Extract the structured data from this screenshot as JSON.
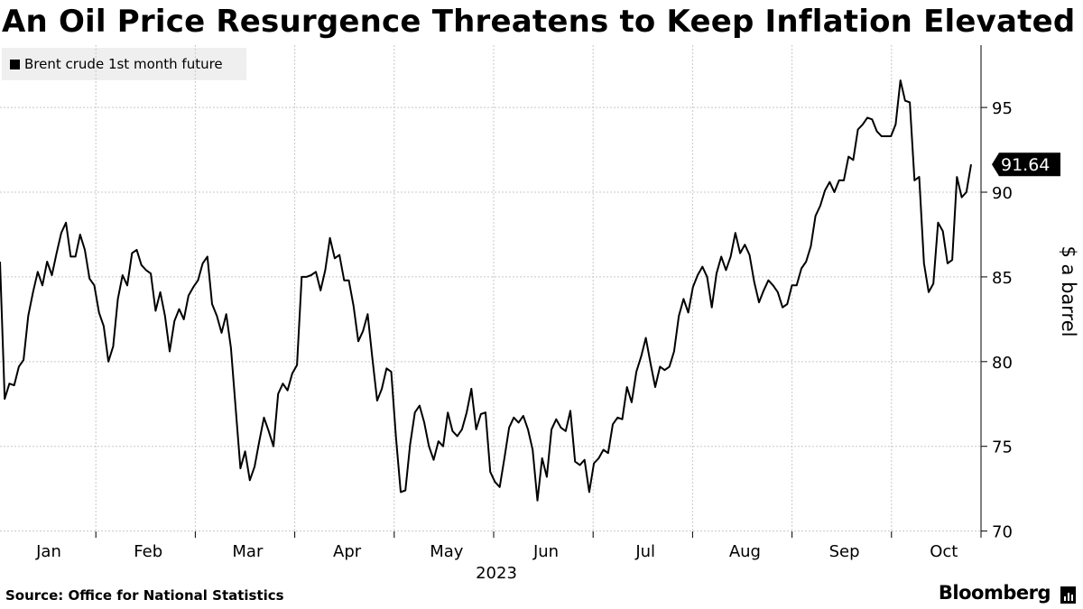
{
  "header": {
    "title": "An Oil Price Resurgence Threatens to Keep Inflation Elevated"
  },
  "footer": {
    "source": "Source: Office for National Statistics",
    "brand": "Bloomberg"
  },
  "colors": {
    "line": "#000000",
    "grid": "#c8c8c8",
    "legend_bg": "#efefef",
    "badge_bg": "#000000"
  },
  "chart_data": {
    "type": "line",
    "title": "An Oil Price Resurgence Threatens to Keep Inflation Elevated",
    "ylabel": "$ a barrel",
    "xlabel": "2023",
    "y_axis_position": "right",
    "ylim": [
      69.5,
      99
    ],
    "y_ticks": [
      70,
      75,
      80,
      85,
      90,
      95
    ],
    "x_tick_labels": [
      "Jan",
      "Feb",
      "Mar",
      "Apr",
      "May",
      "Jun",
      "Jul",
      "Aug",
      "Sep",
      "Oct"
    ],
    "grid": true,
    "legend_position": "top-left",
    "last_value_label": "91.64",
    "series": [
      {
        "name": "Brent crude 1st month future",
        "values": [
          85.9,
          77.8,
          78.7,
          78.6,
          79.7,
          80.1,
          82.7,
          84.1,
          85.3,
          84.5,
          85.9,
          85.1,
          86.4,
          87.6,
          88.2,
          86.2,
          86.2,
          87.5,
          86.6,
          84.9,
          84.5,
          82.9,
          82.1,
          80.0,
          80.9,
          83.7,
          85.1,
          84.5,
          86.4,
          86.6,
          85.7,
          85.4,
          85.2,
          83.0,
          84.1,
          82.7,
          80.6,
          82.4,
          83.1,
          82.5,
          83.9,
          84.4,
          84.8,
          85.8,
          86.2,
          83.4,
          82.7,
          81.7,
          82.8,
          80.8,
          77.2,
          73.7,
          74.7,
          73.0,
          73.8,
          75.3,
          76.7,
          75.9,
          75.0,
          78.1,
          78.7,
          78.3,
          79.3,
          79.8,
          85.0,
          85.0,
          85.1,
          85.3,
          84.2,
          85.4,
          87.3,
          86.1,
          86.3,
          84.8,
          84.8,
          83.3,
          81.2,
          81.8,
          82.8,
          80.2,
          77.7,
          78.4,
          79.6,
          79.4,
          75.5,
          72.3,
          72.4,
          75.1,
          77.0,
          77.4,
          76.4,
          75.0,
          74.2,
          75.3,
          75.0,
          77.0,
          75.9,
          75.6,
          76.0,
          77.0,
          78.4,
          76.0,
          76.9,
          77.0,
          73.5,
          72.9,
          72.6,
          74.3,
          76.1,
          76.7,
          76.4,
          76.8,
          76.0,
          74.8,
          71.8,
          74.3,
          73.2,
          76.0,
          76.6,
          76.1,
          75.9,
          77.1,
          74.1,
          73.9,
          74.2,
          72.3,
          74.0,
          74.3,
          74.8,
          74.6,
          76.3,
          76.7,
          76.6,
          78.5,
          77.6,
          79.4,
          80.3,
          81.4,
          79.9,
          78.5,
          79.7,
          79.5,
          79.7,
          80.6,
          82.7,
          83.7,
          82.9,
          84.4,
          85.1,
          85.6,
          85.0,
          83.2,
          85.2,
          86.2,
          85.4,
          86.2,
          87.6,
          86.4,
          86.9,
          86.3,
          84.7,
          83.5,
          84.2,
          84.8,
          84.5,
          84.1,
          83.2,
          83.4,
          84.5,
          84.5,
          85.5,
          85.9,
          86.8,
          88.6,
          89.2,
          90.1,
          90.6,
          90.0,
          90.7,
          90.7,
          92.1,
          91.9,
          93.7,
          94.0,
          94.4,
          94.3,
          93.6,
          93.3,
          93.3,
          93.3,
          94.0,
          96.6,
          95.4,
          95.3,
          90.7,
          90.9,
          85.8,
          84.1,
          84.6,
          88.2,
          87.7,
          85.8,
          86.0,
          90.9,
          89.7,
          90.0,
          91.64
        ]
      }
    ]
  }
}
